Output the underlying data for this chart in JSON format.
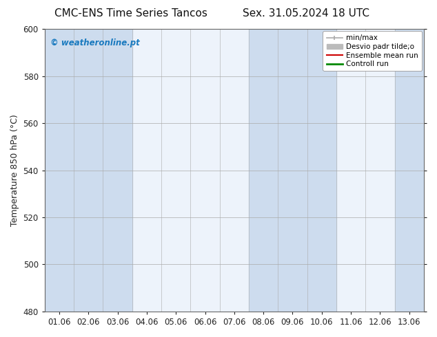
{
  "title_left": "CMC-ENS Time Series Tancos",
  "title_right": "Sex. 31.05.2024 18 UTC",
  "ylabel": "Temperature 850 hPa (°C)",
  "ylim": [
    480,
    600
  ],
  "yticks": [
    480,
    500,
    520,
    540,
    560,
    580,
    600
  ],
  "xtick_labels": [
    "01.06",
    "02.06",
    "03.06",
    "04.06",
    "05.06",
    "06.06",
    "07.06",
    "08.06",
    "09.06",
    "10.06",
    "11.06",
    "12.06",
    "13.06"
  ],
  "background_color": "#ffffff",
  "plot_bg_color": "#ffffff",
  "shaded_columns": [
    0,
    1,
    2,
    7,
    8,
    9,
    12
  ],
  "unshaded_color": "#edf3fb",
  "shaded_color": "#cddcee",
  "watermark_text": "© weatheronline.pt",
  "watermark_color": "#1a7abf",
  "legend_labels": [
    "min/max",
    "Desvio padr tilde;o",
    "Ensemble mean run",
    "Controll run"
  ],
  "legend_colors": [
    "#aaaaaa",
    "#bbbbbb",
    "#cc0000",
    "#008800"
  ],
  "grid_color": "#aaaaaa",
  "spine_color": "#666666",
  "title_fontsize": 11,
  "axis_fontsize": 9,
  "tick_fontsize": 8.5
}
